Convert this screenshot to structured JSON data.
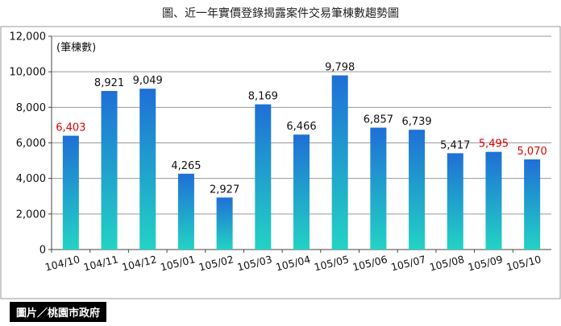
{
  "chart_data": {
    "type": "bar",
    "title": "圖、近一年實價登錄揭露案件交易筆棟數趨勢圖",
    "unit_label": "(筆棟數)",
    "categories": [
      "104/10",
      "104/11",
      "104/12",
      "105/01",
      "105/02",
      "105/03",
      "105/04",
      "105/05",
      "105/06",
      "105/07",
      "105/08",
      "105/09",
      "105/10"
    ],
    "values": [
      6403,
      8921,
      9049,
      4265,
      2927,
      8169,
      6466,
      9798,
      6857,
      6739,
      5417,
      5495,
      5070
    ],
    "value_labels": [
      "6,403",
      "8,921",
      "9,049",
      "4,265",
      "2,927",
      "8,169",
      "6,466",
      "9,798",
      "6,857",
      "6,739",
      "5,417",
      "5,495",
      "5,070"
    ],
    "highlight_indices": [
      0,
      11,
      12
    ],
    "highlight_color": "#e00000",
    "ylim": [
      0,
      12000
    ],
    "yticks": [
      0,
      2000,
      4000,
      6000,
      8000,
      10000,
      12000
    ],
    "ytick_labels": [
      "0",
      "2,000",
      "4,000",
      "6,000",
      "8,000",
      "10,000",
      "12,000"
    ],
    "grid": true,
    "bar_color_top": "#1f6fd6",
    "bar_color_bottom": "#22d3c4"
  },
  "credit": "圖片／桃園市政府"
}
